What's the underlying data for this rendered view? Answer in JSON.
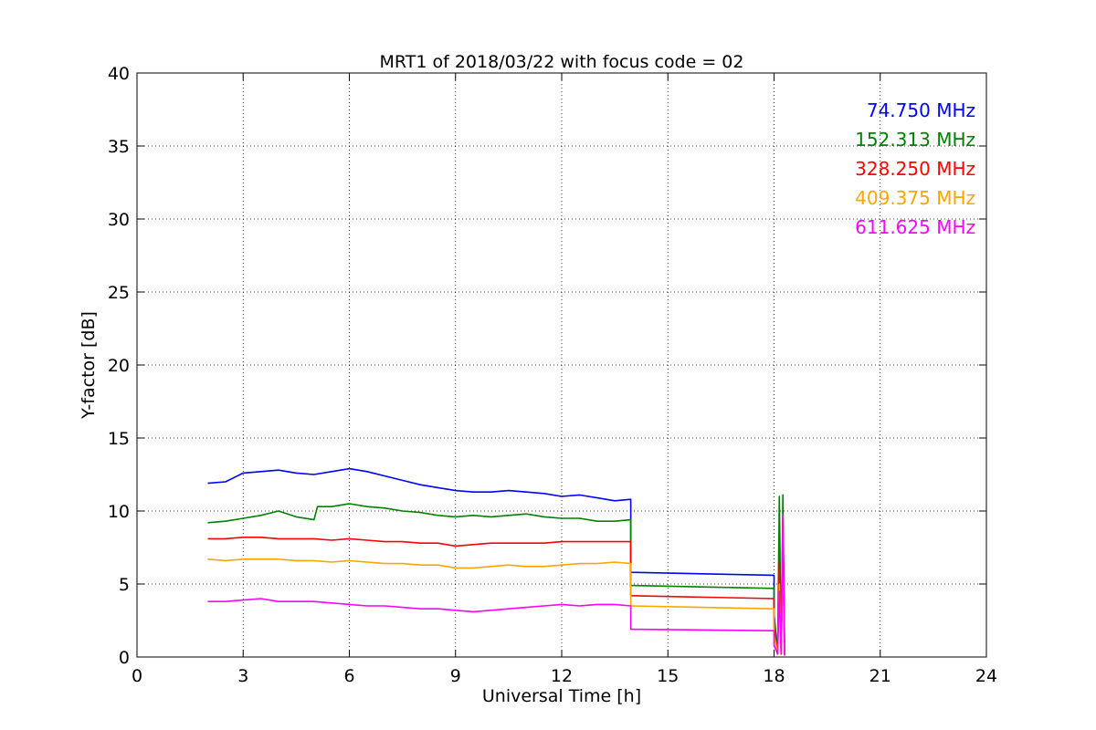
{
  "chart_data": {
    "type": "line",
    "title": "MRT1 of 2018/03/22 with focus code = 02",
    "xlabel": "Universal Time [h]",
    "ylabel": "Y-factor [dB]",
    "xlim": [
      0,
      24
    ],
    "ylim": [
      0,
      40
    ],
    "xticks": [
      0,
      3,
      6,
      9,
      12,
      15,
      18,
      21,
      24
    ],
    "yticks": [
      0,
      5,
      10,
      15,
      20,
      25,
      30,
      35,
      40
    ],
    "xtick_labels": [
      "0",
      "3",
      "6",
      "9",
      "12",
      "15",
      "18",
      "21",
      "24"
    ],
    "ytick_labels": [
      "0",
      "5",
      "10",
      "15",
      "20",
      "25",
      "30",
      "35",
      "40"
    ],
    "grid": true,
    "legend_position": "top-right",
    "series": [
      {
        "name": "74.750 MHz",
        "color": "#0000ff",
        "x": [
          2.0,
          2.5,
          3.0,
          3.5,
          4.0,
          4.5,
          5.0,
          5.5,
          6.0,
          6.5,
          7.0,
          7.5,
          8.0,
          8.5,
          9.0,
          9.5,
          10.0,
          10.5,
          11.0,
          11.5,
          12.0,
          12.5,
          13.0,
          13.5,
          13.95,
          13.95,
          18.0,
          18.0,
          18.1,
          18.15,
          18.2,
          18.25,
          18.3
        ],
        "y": [
          11.9,
          12.0,
          12.6,
          12.7,
          12.8,
          12.6,
          12.5,
          12.7,
          12.9,
          12.7,
          12.4,
          12.1,
          11.8,
          11.6,
          11.4,
          11.3,
          11.3,
          11.4,
          11.3,
          11.2,
          11.0,
          11.1,
          10.9,
          10.7,
          10.8,
          5.8,
          5.6,
          3.0,
          0.2,
          8.5,
          0.2,
          7.0,
          0.1
        ]
      },
      {
        "name": "152.313 MHz",
        "color": "#008000",
        "x": [
          2.0,
          2.5,
          3.0,
          3.5,
          4.0,
          4.5,
          5.0,
          5.1,
          5.5,
          6.0,
          6.5,
          7.0,
          7.5,
          8.0,
          8.5,
          9.0,
          9.5,
          10.0,
          10.5,
          11.0,
          11.5,
          12.0,
          12.5,
          13.0,
          13.5,
          13.95,
          13.95,
          18.0,
          18.0,
          18.1,
          18.15,
          18.2,
          18.25,
          18.3
        ],
        "y": [
          9.2,
          9.3,
          9.5,
          9.7,
          10.0,
          9.6,
          9.4,
          10.3,
          10.3,
          10.5,
          10.3,
          10.2,
          10.0,
          9.9,
          9.7,
          9.6,
          9.7,
          9.6,
          9.7,
          9.8,
          9.6,
          9.5,
          9.5,
          9.3,
          9.3,
          9.4,
          4.9,
          4.7,
          2.5,
          0.3,
          11.0,
          0.2,
          11.1,
          0.1
        ]
      },
      {
        "name": "328.250 MHz",
        "color": "#ff0000",
        "x": [
          2.0,
          2.5,
          3.0,
          3.5,
          4.0,
          4.5,
          5.0,
          5.5,
          6.0,
          6.5,
          7.0,
          7.5,
          8.0,
          8.5,
          9.0,
          9.5,
          10.0,
          10.5,
          11.0,
          11.5,
          12.0,
          12.5,
          13.0,
          13.5,
          13.95,
          13.95,
          18.0,
          18.0,
          18.1,
          18.15,
          18.2,
          18.25,
          18.3
        ],
        "y": [
          8.1,
          8.1,
          8.2,
          8.2,
          8.1,
          8.1,
          8.1,
          8.0,
          8.1,
          8.0,
          7.9,
          7.9,
          7.8,
          7.8,
          7.6,
          7.7,
          7.8,
          7.8,
          7.8,
          7.8,
          7.9,
          7.9,
          7.9,
          7.9,
          7.9,
          4.2,
          4.0,
          2.0,
          0.2,
          6.5,
          0.2,
          9.5,
          0.1
        ]
      },
      {
        "name": "409.375 MHz",
        "color": "#ffa500",
        "x": [
          2.0,
          2.5,
          3.0,
          3.5,
          4.0,
          4.5,
          5.0,
          5.5,
          6.0,
          6.5,
          7.0,
          7.5,
          8.0,
          8.5,
          9.0,
          9.5,
          10.0,
          10.5,
          11.0,
          11.5,
          12.0,
          12.5,
          13.0,
          13.5,
          13.95,
          13.95,
          18.0,
          18.0,
          18.1,
          18.15,
          18.2,
          18.25,
          18.3
        ],
        "y": [
          6.7,
          6.6,
          6.7,
          6.7,
          6.7,
          6.6,
          6.6,
          6.5,
          6.6,
          6.5,
          6.4,
          6.4,
          6.3,
          6.3,
          6.1,
          6.1,
          6.2,
          6.3,
          6.2,
          6.2,
          6.3,
          6.4,
          6.4,
          6.5,
          6.4,
          3.5,
          3.3,
          1.5,
          0.2,
          5.0,
          0.2,
          7.5,
          0.1
        ]
      },
      {
        "name": "611.625 MHz",
        "color": "#ff00ff",
        "x": [
          2.0,
          2.5,
          3.0,
          3.5,
          4.0,
          4.5,
          5.0,
          5.5,
          6.0,
          6.5,
          7.0,
          7.5,
          8.0,
          8.5,
          9.0,
          9.5,
          10.0,
          10.5,
          11.0,
          11.5,
          12.0,
          12.5,
          13.0,
          13.5,
          13.95,
          13.95,
          18.0,
          18.0,
          18.1,
          18.15,
          18.2,
          18.25,
          18.3
        ],
        "y": [
          3.8,
          3.8,
          3.9,
          4.0,
          3.8,
          3.8,
          3.8,
          3.7,
          3.6,
          3.5,
          3.5,
          3.4,
          3.3,
          3.3,
          3.2,
          3.1,
          3.2,
          3.3,
          3.4,
          3.5,
          3.6,
          3.5,
          3.6,
          3.6,
          3.5,
          1.9,
          1.8,
          0.8,
          0.2,
          4.5,
          0.2,
          9.8,
          0.1
        ]
      }
    ]
  }
}
